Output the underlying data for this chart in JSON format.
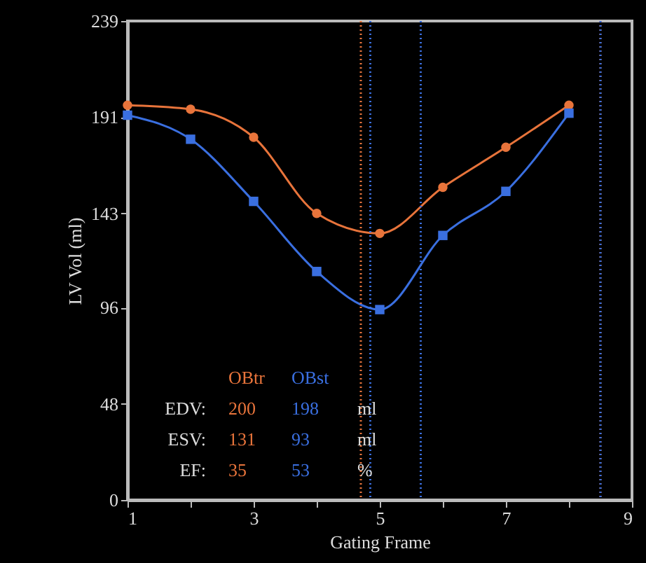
{
  "chart_data": {
    "type": "line",
    "xlabel": "Gating Frame",
    "ylabel": "LV Vol (ml)",
    "x": [
      1,
      2,
      3,
      4,
      5,
      6,
      7,
      8
    ],
    "series": [
      {
        "name": "OBtr",
        "color": "#e8743b",
        "marker": "circle",
        "values": [
          197,
          195,
          181,
          143,
          133,
          156,
          176,
          197
        ]
      },
      {
        "name": "OBst",
        "color": "#3a6fe0",
        "marker": "square",
        "values": [
          192,
          180,
          149,
          114,
          95,
          132,
          154,
          193
        ]
      }
    ],
    "xlim": [
      1,
      9
    ],
    "xticks": [
      1,
      {
        "value": 2,
        "label": null
      },
      3,
      {
        "value": 4,
        "label": null
      },
      5,
      {
        "value": 6,
        "label": null
      },
      7,
      {
        "value": 8,
        "label": null
      },
      9
    ],
    "ylim": [
      0,
      239
    ],
    "yticks": [
      0,
      48,
      96,
      143,
      191,
      239
    ],
    "ref_lines": [
      {
        "axis": "x",
        "value": 4.7,
        "color": "#e8743b",
        "line_style": "dotted"
      },
      {
        "axis": "x",
        "value": 4.85,
        "color": "#3a6fe0",
        "line_style": "dotted"
      },
      {
        "axis": "x",
        "value": 5.65,
        "color": "#3a6fe0",
        "line_style": "dotted"
      },
      {
        "axis": "x",
        "value": 8.5,
        "color": "#e8743b",
        "line_style": "dotted"
      },
      {
        "axis": "x",
        "value": 8.5,
        "color": "#3a6fe0",
        "line_style": "dotted"
      }
    ],
    "annotations": [
      "EDV:",
      "200",
      "198",
      "ml",
      "ESV:",
      "131",
      "93",
      "ml",
      "EF:",
      "35",
      "53",
      "%"
    ],
    "grid": false,
    "line_style": "solid"
  }
}
